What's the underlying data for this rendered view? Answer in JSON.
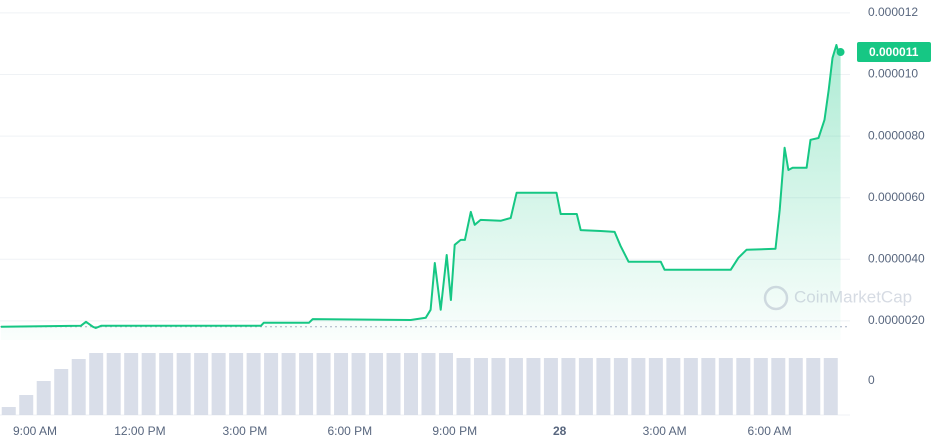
{
  "chart_data": {
    "type": "line",
    "x": [
      8.03,
      10.31,
      10.46,
      10.66,
      10.74,
      10.89,
      15.46,
      15.54,
      16.83,
      16.94,
      19.74,
      20.17,
      20.31,
      20.43,
      20.6,
      20.77,
      20.89,
      21,
      21.17,
      21.29,
      21.46,
      21.57,
      21.74,
      22.31,
      22.6,
      22.77,
      23.91,
      24.03,
      24.49,
      24.6,
      25.17,
      25.57,
      25.74,
      25.97,
      26.89,
      27,
      28.89,
      29.11,
      29.34,
      30.17,
      30.29,
      30.43,
      30.54,
      30.66,
      31.06,
      31.17,
      31.4,
      31.57,
      31.69,
      31.8,
      31.91,
      31.97,
      32.03
    ],
    "series": [
      {
        "color": "#16c784",
        "values": [
          1.81e-06,
          1.84e-06,
          1.97e-06,
          1.81e-06,
          1.77e-06,
          1.84e-06,
          1.84e-06,
          1.94e-06,
          1.94e-06,
          2.06e-06,
          2.03e-06,
          2.1e-06,
          2.36e-06,
          3.88e-06,
          2.36e-06,
          4.14e-06,
          2.68e-06,
          4.47e-06,
          4.63e-06,
          4.63e-06,
          5.54e-06,
          5.12e-06,
          5.28e-06,
          5.25e-06,
          5.34e-06,
          6.16e-06,
          6.16e-06,
          5.47e-06,
          5.47e-06,
          4.95e-06,
          4.92e-06,
          4.89e-06,
          4.44e-06,
          3.92e-06,
          3.92e-06,
          3.66e-06,
          3.66e-06,
          4.05e-06,
          4.31e-06,
          4.34e-06,
          5.6e-06,
          7.62e-06,
          6.9e-06,
          6.97e-06,
          6.97e-06,
          7.88e-06,
          7.94e-06,
          8.53e-06,
          9.5e-06,
          1.054e-05,
          1.096e-05,
          1.07e-05,
          1.073e-05
        ]
      }
    ],
    "xlim": [
      8,
      32.3
    ],
    "xticks": [
      {
        "value": 9,
        "label": "9:00 AM"
      },
      {
        "value": 12,
        "label": "12:00 PM"
      },
      {
        "value": 15,
        "label": "3:00 PM"
      },
      {
        "value": 18,
        "label": "6:00 PM"
      },
      {
        "value": 21,
        "label": "9:00 PM"
      },
      {
        "value": 24,
        "label": "28"
      },
      {
        "value": 27,
        "label": "3:00 AM"
      },
      {
        "value": 30,
        "label": "6:00 AM"
      }
    ],
    "ylim": [
      1.38e-06,
      1.242e-05
    ],
    "yticks": [
      1.2e-05,
      {
        "value": 1e-05,
        "label": "0.000010"
      },
      {
        "value": 8e-06,
        "label": "0.0000080"
      },
      {
        "value": 6e-06,
        "label": "0.0000060"
      },
      {
        "value": 4e-06,
        "label": "0.0000040"
      },
      {
        "value": 2e-06,
        "label": "0.0000020"
      }
    ],
    "grid": true,
    "current_price_label": "0.000011",
    "watermark": "CoinMarketCap",
    "volume": {
      "color": "#cfd6e4",
      "x": [
        8.25,
        8.75,
        9.25,
        9.75,
        10.25,
        10.75,
        11.25,
        11.75,
        12.25,
        12.75,
        13.25,
        13.75,
        14.25,
        14.75,
        15.25,
        15.75,
        16.25,
        16.75,
        17.25,
        17.75,
        18.25,
        18.75,
        19.25,
        19.75,
        20.25,
        20.75,
        21.25,
        21.75,
        22.25,
        22.75,
        23.25,
        23.75,
        24.25,
        24.75,
        25.25,
        25.75,
        26.25,
        26.75,
        27.25,
        27.75,
        28.25,
        28.75,
        29.25,
        29.75,
        30.25,
        30.75,
        31.25,
        31.75
      ],
      "values": [
        8,
        20,
        34,
        46,
        56,
        62,
        62,
        62,
        62,
        62,
        62,
        62,
        62,
        62,
        62,
        62,
        62,
        62,
        62,
        62,
        62,
        62,
        62,
        62,
        62,
        62,
        57,
        57,
        57,
        57,
        57,
        57,
        57,
        57,
        57,
        57,
        57,
        57,
        57,
        57,
        57,
        57,
        57,
        57,
        57,
        57,
        57,
        57
      ],
      "ylim": [
        0,
        70
      ],
      "yticks": [
        0
      ]
    }
  }
}
